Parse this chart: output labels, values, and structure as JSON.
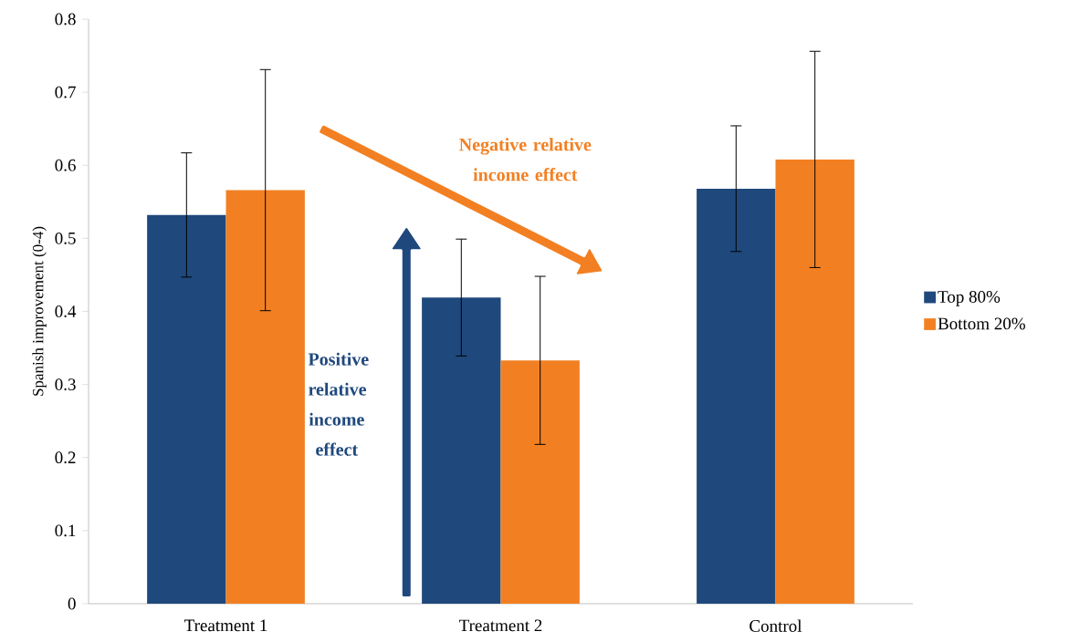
{
  "chart_data": {
    "type": "bar",
    "ylabel": "Spanish improvement (0-4)",
    "categories": [
      "Treatment 1",
      "Treatment 2",
      "Control"
    ],
    "series": [
      {
        "name": "Top 80%",
        "color": "#1f497d",
        "values": [
          0.532,
          0.419,
          0.568
        ],
        "errors": [
          0.085,
          0.08,
          0.086
        ]
      },
      {
        "name": "Bottom 20%",
        "color": "#f28023",
        "values": [
          0.566,
          0.333,
          0.608
        ],
        "errors": [
          0.165,
          0.115,
          0.148
        ]
      }
    ],
    "ylim": [
      0,
      0.8
    ],
    "yticks": [
      0,
      0.1,
      0.2,
      0.3,
      0.4,
      0.5,
      0.6,
      0.7,
      0.8
    ],
    "legend": "right",
    "grid": false,
    "annotations": [
      "Positive relative income effect",
      "Negative relative income effect"
    ]
  }
}
